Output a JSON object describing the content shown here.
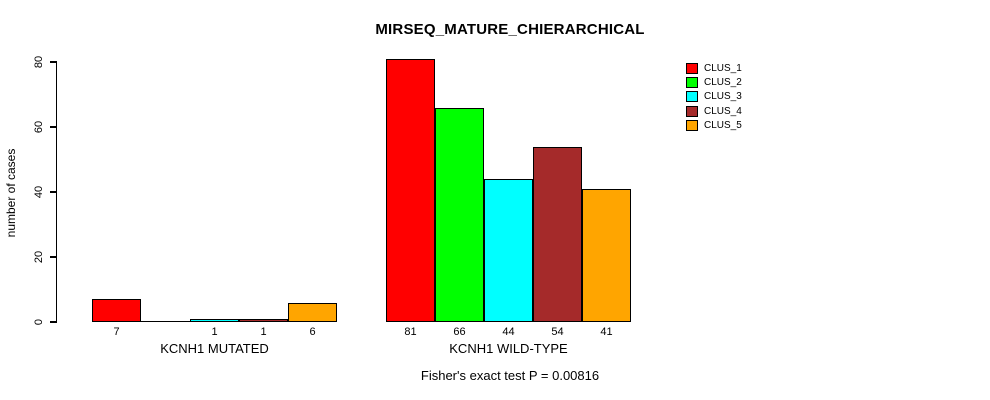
{
  "chart_data": {
    "type": "bar",
    "title": "MIRSEQ_MATURE_CHIERARCHICAL",
    "xlabel": "",
    "ylabel": "number of cases",
    "ylim": [
      0,
      80
    ],
    "yticks": [
      0,
      20,
      40,
      60,
      80
    ],
    "grid": false,
    "legend_position": "top-right",
    "background_color": "#FFFFFF",
    "axis_color": "#000000",
    "groups": [
      "KCNH1 MUTATED",
      "KCNH1 WILD-TYPE"
    ],
    "series": [
      {
        "name": "CLUS_1",
        "color": "#FF0000",
        "values": [
          7,
          81
        ]
      },
      {
        "name": "CLUS_2",
        "color": "#00FF00",
        "values": [
          0,
          66
        ]
      },
      {
        "name": "CLUS_3",
        "color": "#00FFFF",
        "values": [
          1,
          44
        ]
      },
      {
        "name": "CLUS_4",
        "color": "#A52A2A",
        "values": [
          1,
          54
        ]
      },
      {
        "name": "CLUS_5",
        "color": "#FFA500",
        "values": [
          6,
          41
        ]
      }
    ],
    "bar_labels": [
      [
        "7",
        "",
        "1",
        "1",
        "6"
      ],
      [
        "81",
        "66",
        "44",
        "54",
        "41"
      ]
    ],
    "annotation": "Fisher's exact test P = 0.00816"
  }
}
